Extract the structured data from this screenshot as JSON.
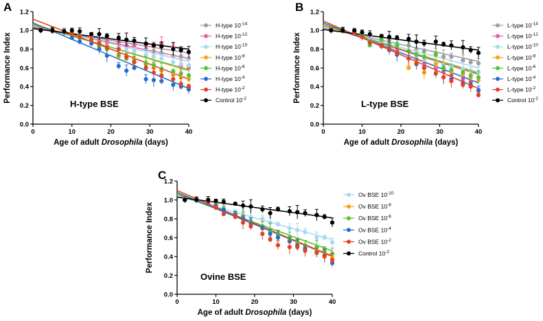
{
  "figure": {
    "colors": {
      "grey": "#9e9e9e",
      "pink": "#ec5fa0",
      "lightblue": "#a9d8f2",
      "orange": "#f7a21b",
      "green": "#56c13b",
      "blue": "#1f6fd2",
      "red": "#e8401c",
      "black": "#000000"
    }
  },
  "chart_data": [
    {
      "panel": "A",
      "type": "scatter",
      "title": "H-type BSE",
      "xlabel": "Age of adult Drosophila (days)",
      "xlabel_main": "Age of adult ",
      "xlabel_italic": "Drosophila",
      "xlabel_tail": " (days)",
      "ylabel": "Performance Index",
      "xlim": [
        0,
        40
      ],
      "ylim": [
        0,
        1.2
      ],
      "xticks": [
        0,
        10,
        20,
        30,
        40
      ],
      "yticks": [
        0.0,
        0.2,
        0.4,
        0.6,
        0.8,
        1.0,
        1.2
      ],
      "x": [
        2,
        5,
        8,
        10,
        12,
        15,
        17,
        19,
        22,
        24,
        26,
        29,
        31,
        33,
        36,
        38,
        40
      ],
      "series": [
        {
          "name": "H-type 10",
          "exp": "-14",
          "color": "grey",
          "fit": [
            1.03,
            -0.0068
          ],
          "values": [
            1.0,
            1.0,
            0.99,
            0.97,
            0.95,
            0.93,
            0.9,
            0.89,
            0.87,
            0.84,
            0.85,
            0.8,
            0.78,
            0.76,
            0.73,
            0.72,
            0.7
          ]
        },
        {
          "name": "H-type 10",
          "exp": "-12",
          "color": "pink",
          "fit": [
            1.04,
            -0.0085
          ],
          "values": [
            1.0,
            1.0,
            0.99,
            0.97,
            0.93,
            0.93,
            0.89,
            0.88,
            0.87,
            0.84,
            0.84,
            0.84,
            0.83,
            0.86,
            0.82,
            0.62,
            0.6
          ]
        },
        {
          "name": "H-type 10",
          "exp": "-10",
          "color": "lightblue",
          "fit": [
            1.05,
            -0.0095
          ],
          "values": [
            1.0,
            1.0,
            0.99,
            0.95,
            0.92,
            0.91,
            0.87,
            0.85,
            0.82,
            0.8,
            0.78,
            0.74,
            0.72,
            0.7,
            0.66,
            0.64,
            0.63
          ]
        },
        {
          "name": "H-type 10",
          "exp": "-8",
          "color": "orange",
          "fit": [
            1.07,
            -0.0125
          ],
          "values": [
            1.0,
            1.0,
            0.98,
            0.95,
            0.88,
            0.86,
            0.83,
            0.8,
            0.72,
            0.7,
            0.68,
            0.64,
            0.6,
            0.57,
            0.53,
            0.5,
            0.48
          ]
        },
        {
          "name": "H-type 10",
          "exp": "-6",
          "color": "green",
          "fit": [
            1.06,
            -0.012
          ],
          "values": [
            1.0,
            1.0,
            0.99,
            0.97,
            0.94,
            0.9,
            0.84,
            0.8,
            0.74,
            0.7,
            0.69,
            0.65,
            0.63,
            0.59,
            0.56,
            0.54,
            0.52
          ]
        },
        {
          "name": "H-type 10",
          "exp": "-4",
          "color": "blue",
          "fit": [
            1.08,
            -0.0175
          ],
          "values": [
            1.0,
            1.0,
            0.98,
            0.92,
            0.88,
            0.86,
            0.8,
            0.73,
            0.62,
            0.57,
            0.6,
            0.48,
            0.47,
            0.46,
            0.42,
            0.4,
            0.37
          ]
        },
        {
          "name": "H-type 10",
          "exp": "-2",
          "color": "red",
          "fit": [
            1.12,
            -0.016
          ],
          "values": [
            1.0,
            0.99,
            0.98,
            0.96,
            0.93,
            0.9,
            0.86,
            0.82,
            0.8,
            0.72,
            0.66,
            0.6,
            0.55,
            0.52,
            0.48,
            0.43,
            0.4
          ]
        },
        {
          "name": "Control 10",
          "exp": "-2",
          "color": "black",
          "fit": [
            1.02,
            -0.0055
          ],
          "values": [
            1.0,
            1.0,
            0.99,
            1.0,
            0.99,
            0.96,
            0.96,
            0.94,
            0.92,
            0.9,
            0.89,
            0.86,
            0.84,
            0.83,
            0.8,
            0.79,
            0.77
          ]
        }
      ]
    },
    {
      "panel": "B",
      "type": "scatter",
      "title": "L-type BSE",
      "xlabel": "Age of adult Drosophila (days)",
      "xlabel_main": "Age of adult ",
      "xlabel_italic": "Drosophila",
      "xlabel_tail": " (days)",
      "ylabel": "Performance Index",
      "xlim": [
        0,
        40
      ],
      "ylim": [
        0,
        1.2
      ],
      "xticks": [
        0,
        10,
        20,
        30,
        40
      ],
      "yticks": [
        0.0,
        0.2,
        0.4,
        0.6,
        0.8,
        1.0,
        1.2
      ],
      "x": [
        2,
        5,
        8,
        10,
        12,
        15,
        17,
        19,
        22,
        24,
        26,
        29,
        31,
        33,
        36,
        38,
        40
      ],
      "series": [
        {
          "name": "L-type 10",
          "exp": "-14",
          "color": "grey",
          "fit": [
            1.03,
            -0.009
          ],
          "values": [
            1.0,
            1.0,
            0.99,
            0.97,
            0.85,
            0.92,
            0.9,
            0.86,
            0.84,
            0.8,
            0.78,
            0.76,
            0.72,
            0.72,
            0.68,
            0.66,
            0.65
          ]
        },
        {
          "name": "L-type 10",
          "exp": "-12",
          "color": "pink",
          "fit": [
            1.05,
            -0.013
          ],
          "values": [
            1.0,
            1.0,
            0.99,
            0.94,
            0.88,
            0.86,
            0.83,
            0.78,
            0.72,
            0.68,
            0.64,
            0.6,
            0.56,
            0.52,
            0.48,
            0.45,
            0.36
          ]
        },
        {
          "name": "L-type 10",
          "exp": "-10",
          "color": "lightblue",
          "fit": [
            1.04,
            -0.011
          ],
          "values": [
            1.0,
            1.0,
            0.98,
            0.95,
            0.9,
            0.88,
            0.86,
            0.84,
            0.72,
            0.72,
            0.68,
            0.66,
            0.63,
            0.62,
            0.59,
            0.57,
            0.55
          ]
        },
        {
          "name": "L-type 10",
          "exp": "-8",
          "color": "orange",
          "fit": [
            1.05,
            -0.0125
          ],
          "values": [
            1.0,
            1.0,
            0.98,
            0.94,
            0.88,
            0.84,
            0.8,
            0.76,
            0.6,
            0.66,
            0.55,
            0.64,
            0.6,
            0.56,
            0.52,
            0.5,
            0.47
          ]
        },
        {
          "name": "L-type 10",
          "exp": "-6",
          "color": "green",
          "fit": [
            1.06,
            -0.013
          ],
          "values": [
            1.0,
            1.0,
            0.99,
            0.96,
            0.84,
            0.9,
            0.86,
            0.84,
            0.78,
            0.74,
            0.72,
            0.74,
            0.6,
            0.58,
            0.55,
            0.52,
            0.5
          ]
        },
        {
          "name": "L-type 10",
          "exp": "-4",
          "color": "blue",
          "fit": [
            1.08,
            -0.016
          ],
          "values": [
            1.0,
            1.0,
            0.98,
            0.93,
            0.87,
            0.84,
            0.79,
            0.74,
            0.7,
            0.64,
            0.6,
            0.54,
            0.5,
            0.48,
            0.44,
            0.42,
            0.36
          ]
        },
        {
          "name": "L-type 10",
          "exp": "-2",
          "color": "red",
          "fit": [
            1.1,
            -0.018
          ],
          "values": [
            1.0,
            1.0,
            0.98,
            0.93,
            0.87,
            0.83,
            0.8,
            0.76,
            0.7,
            0.65,
            0.6,
            0.54,
            0.5,
            0.46,
            0.42,
            0.4,
            0.31
          ]
        },
        {
          "name": "Control 10",
          "exp": "-2",
          "color": "black",
          "fit": [
            1.01,
            -0.0055
          ],
          "values": [
            1.0,
            1.0,
            1.0,
            0.98,
            0.96,
            0.94,
            0.93,
            0.92,
            0.91,
            0.88,
            0.86,
            0.88,
            0.85,
            0.84,
            0.82,
            0.79,
            0.76
          ]
        }
      ]
    },
    {
      "panel": "C",
      "type": "scatter",
      "title": "Ovine BSE",
      "xlabel": "Age of adult Drosophila (days)",
      "xlabel_main": "Age of adult ",
      "xlabel_italic": "Drosophila",
      "xlabel_tail": " (days)",
      "ylabel": "Performance Index",
      "xlim": [
        0,
        40
      ],
      "ylim": [
        0,
        1.2
      ],
      "xticks": [
        0,
        10,
        20,
        30,
        40
      ],
      "yticks": [
        0.0,
        0.2,
        0.4,
        0.6,
        0.8,
        1.0,
        1.2
      ],
      "x": [
        2,
        5,
        8,
        10,
        12,
        15,
        17,
        19,
        22,
        24,
        26,
        29,
        31,
        33,
        36,
        38,
        40
      ],
      "series": [
        {
          "name": "Ov BSE 10",
          "exp": "-10",
          "color": "lightblue",
          "fit": [
            1.04,
            -0.0115
          ],
          "values": [
            1.0,
            1.0,
            0.99,
            0.96,
            0.92,
            0.88,
            0.86,
            0.82,
            0.8,
            0.76,
            0.74,
            0.7,
            0.68,
            0.66,
            0.6,
            0.6,
            0.55
          ]
        },
        {
          "name": "Ov BSE 10",
          "exp": "-8",
          "color": "orange",
          "fit": [
            1.07,
            -0.0165
          ],
          "values": [
            1.0,
            1.0,
            0.98,
            0.94,
            0.9,
            0.85,
            0.8,
            0.76,
            0.7,
            0.66,
            0.62,
            0.58,
            0.55,
            0.5,
            0.46,
            0.44,
            0.38
          ]
        },
        {
          "name": "Ov BSE 10",
          "exp": "-6",
          "color": "green",
          "fit": [
            1.06,
            -0.015
          ],
          "values": [
            1.0,
            1.0,
            0.98,
            0.95,
            0.9,
            0.86,
            0.82,
            0.77,
            0.72,
            0.68,
            0.64,
            0.6,
            0.57,
            0.52,
            0.5,
            0.47,
            0.43
          ]
        },
        {
          "name": "Ov BSE 10",
          "exp": "-4",
          "color": "blue",
          "fit": [
            1.08,
            -0.017
          ],
          "values": [
            1.0,
            1.0,
            0.98,
            0.94,
            0.89,
            0.84,
            0.8,
            0.75,
            0.7,
            0.64,
            0.6,
            0.56,
            0.52,
            0.48,
            0.44,
            0.41,
            0.33
          ]
        },
        {
          "name": "Ov BSE 10",
          "exp": "-2",
          "color": "red",
          "fit": [
            1.1,
            -0.0175
          ],
          "values": [
            1.0,
            1.0,
            0.97,
            0.92,
            0.85,
            0.82,
            0.76,
            0.72,
            0.64,
            0.58,
            0.52,
            0.5,
            0.5,
            0.46,
            0.44,
            0.4,
            0.36
          ]
        },
        {
          "name": "Control 10",
          "exp": "-2",
          "color": "black",
          "fit": [
            1.03,
            -0.0055
          ],
          "values": [
            1.0,
            1.0,
            1.0,
            0.99,
            0.98,
            0.96,
            0.94,
            0.93,
            0.9,
            0.86,
            0.9,
            0.88,
            0.87,
            0.86,
            0.84,
            0.82,
            0.76
          ]
        }
      ]
    }
  ]
}
